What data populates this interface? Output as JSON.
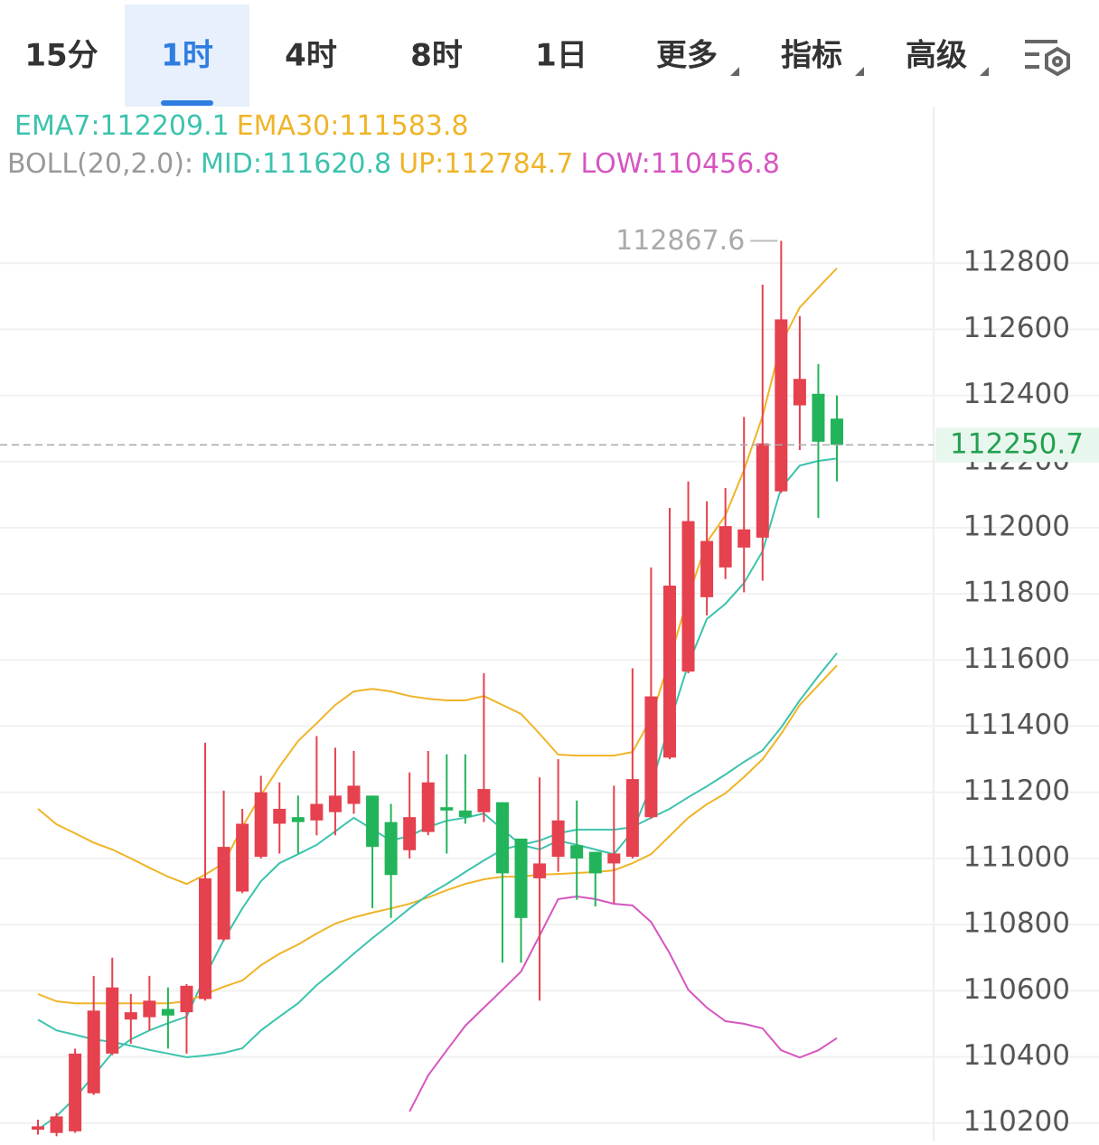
{
  "tabs": [
    "15分",
    "1时",
    "4时",
    "8时",
    "1日",
    "更多",
    "指标",
    "高级"
  ],
  "active_tab": 1,
  "chart_data": {
    "type": "candlestick",
    "indicator_label": "BOLL(20,2.0):",
    "up_color": "#e5414e",
    "down_color": "#22b45a",
    "open": [
      110180,
      110170,
      110175,
      110290,
      110410,
      110513,
      110520,
      110545,
      110535,
      110575,
      110755,
      110900,
      111005,
      111105,
      111125,
      111115,
      111140,
      111165,
      111190,
      111110,
      111025,
      111080,
      111155,
      111145,
      111140,
      111170,
      111060,
      110940,
      111005,
      111040,
      111020,
      110985,
      111005,
      111125,
      111305,
      111565,
      111790,
      111880,
      111940,
      111970,
      112110,
      112370,
      112405,
      112330
    ],
    "high": [
      110210,
      110230,
      110425,
      110645,
      110700,
      110590,
      110645,
      110610,
      110620,
      111350,
      111205,
      111150,
      111250,
      111230,
      111190,
      111370,
      111335,
      111325,
      111190,
      111165,
      111260,
      111325,
      111315,
      111315,
      111560,
      111170,
      111060,
      111245,
      111300,
      111175,
      111020,
      111220,
      111575,
      111880,
      112060,
      112140,
      112080,
      112120,
      112335,
      112735,
      112867.6,
      112640,
      112495,
      112400
    ],
    "low": [
      110165,
      110160,
      110170,
      110285,
      110405,
      110440,
      110480,
      110425,
      110410,
      110570,
      110750,
      110895,
      111000,
      111015,
      111015,
      111070,
      111070,
      111135,
      110850,
      110820,
      111000,
      111070,
      111015,
      111105,
      111110,
      110685,
      110685,
      110570,
      110960,
      110875,
      110855,
      110865,
      111000,
      111120,
      111300,
      111560,
      111735,
      111845,
      111805,
      111840,
      112105,
      112235,
      112030,
      112140
    ],
    "close": [
      110190,
      110220,
      110410,
      110540,
      110610,
      110535,
      110570,
      110525,
      110615,
      110940,
      111035,
      111105,
      111200,
      111150,
      111110,
      111165,
      111190,
      111220,
      111035,
      110950,
      111125,
      111230,
      111145,
      111125,
      111210,
      110955,
      110820,
      110985,
      111115,
      111000,
      110955,
      111015,
      111240,
      111490,
      111825,
      112020,
      111960,
      112005,
      111995,
      112255,
      112630,
      112450,
      112260,
      112250.7
    ],
    "series": [
      {
        "name": "EMA7:112209.1",
        "color": "#3cc3ad",
        "row": 1,
        "values": [
          110180,
          110221,
          110276,
          110344,
          110412,
          110453,
          110480,
          110502,
          110522,
          110644,
          110754,
          110849,
          110931,
          110986,
          111013,
          111041,
          111082,
          111123,
          111088,
          111054,
          111068,
          111095,
          111114,
          111123,
          111136,
          111088,
          111041,
          111027,
          111054,
          111041,
          111027,
          111013,
          111082,
          111218,
          111409,
          111587,
          111724,
          111770,
          111833,
          111929,
          112120,
          112188,
          112202,
          112209.1
        ]
      },
      {
        "name": "EMA30:111583.8",
        "color": "#efb428",
        "row": 1,
        "values": [
          110590,
          110568,
          110562,
          110562,
          110562,
          110562,
          110562,
          110562,
          110568,
          110590,
          110612,
          110631,
          110677,
          110712,
          110740,
          110773,
          110803,
          110822,
          110836,
          110849,
          110863,
          110882,
          110904,
          110923,
          110937,
          110945,
          110945,
          110951,
          110953,
          110956,
          110959,
          110964,
          110986,
          111013,
          111068,
          111123,
          111164,
          111197,
          111246,
          111300,
          111377,
          111464,
          111524,
          111583.8
        ]
      },
      {
        "name": "MID:111620.8",
        "color": "#3cc3ad",
        "row": 2,
        "values": [
          110513,
          110480,
          110467,
          110453,
          110445,
          110434,
          110421,
          110410,
          110399,
          110404,
          110412,
          110426,
          110480,
          110522,
          110562,
          110617,
          110663,
          110712,
          110759,
          110803,
          110849,
          110890,
          110923,
          110959,
          110994,
          111027,
          111041,
          111054,
          111076,
          111087,
          111087,
          111087,
          111095,
          111123,
          111150,
          111185,
          111218,
          111254,
          111292,
          111327,
          111396,
          111478,
          111551,
          111620.8
        ]
      },
      {
        "name": "UP:112784.7",
        "color": "#efb428",
        "row": 2,
        "values": [
          111150,
          111103,
          111076,
          111048,
          111027,
          111000,
          110972,
          110945,
          110923,
          110951,
          110986,
          111095,
          111191,
          111278,
          111355,
          111409,
          111464,
          111505,
          111513,
          111505,
          111491,
          111483,
          111478,
          111478,
          111491,
          111464,
          111437,
          111377,
          111314,
          111311,
          111311,
          111311,
          111322,
          111423,
          111601,
          111792,
          111956,
          112038,
          112174,
          112338,
          112557,
          112666,
          112726,
          112784.7
        ]
      },
      {
        "name": "LOW:110456.8",
        "color": "#d656c0",
        "row": 2,
        "values": [
          null,
          null,
          null,
          null,
          null,
          null,
          null,
          null,
          null,
          null,
          null,
          null,
          null,
          null,
          null,
          null,
          null,
          null,
          null,
          null,
          110235,
          110344,
          110420,
          110494,
          110549,
          110603,
          110658,
          110767,
          110877,
          110885,
          110877,
          110863,
          110858,
          110808,
          110713,
          110603,
          110549,
          110508,
          110500,
          110486,
          110420,
          110398,
          110420,
          110456.8
        ]
      }
    ],
    "max_label": "112867.6",
    "last_price": 112250.7,
    "last_color": "#22a050",
    "ylim": [
      110150,
      113000
    ],
    "yticks": [
      110200,
      110400,
      110600,
      110800,
      111000,
      111200,
      111400,
      111600,
      111800,
      112000,
      112200,
      112400,
      112600,
      112800
    ],
    "grid": true
  }
}
